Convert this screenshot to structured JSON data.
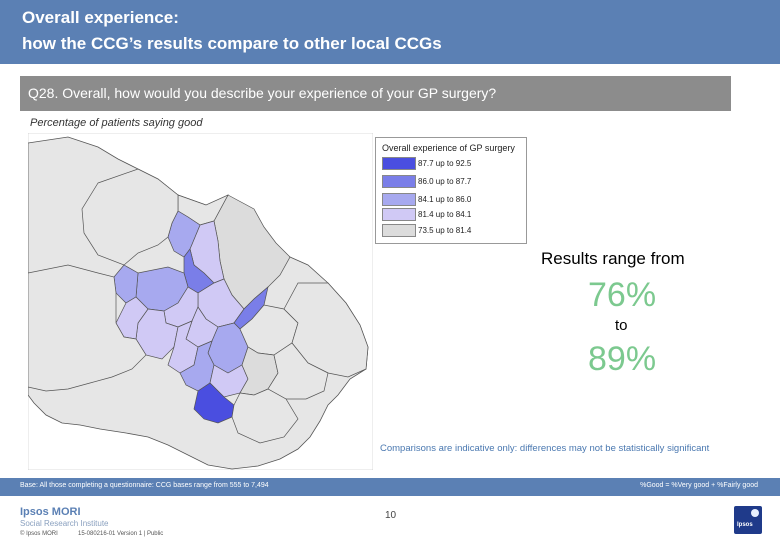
{
  "header": {
    "title_line1": "Overall experience:",
    "title_line2": "how the CCG’s results compare to other local CCGs"
  },
  "question": "Q28. Overall, how would you describe your experience of your GP surgery?",
  "subtitle": "Percentage of patients saying good",
  "legend": {
    "title": "Overall experience of GP surgery",
    "items": [
      {
        "label": "87.7 up to 92.5",
        "color": "#4a4ee0"
      },
      {
        "label": "86.0 up to 87.7",
        "color": "#7a7ee8"
      },
      {
        "label": "84.1 up to 86.0",
        "color": "#a7a9ef"
      },
      {
        "label": "81.4 up to 84.1",
        "color": "#d0c9f5"
      },
      {
        "label": "73.5 up to 81.4",
        "color": "#dcdcdc"
      }
    ]
  },
  "results": {
    "range_label": "Results range from",
    "low": "76%",
    "to": "to",
    "high": "89%",
    "accent_color": "#7cc98f"
  },
  "caveat": "Comparisons are indicative only: differences may not be statistically significant",
  "footer": {
    "base": "Base: All those completing a questionnaire: CCG bases range from 555 to 7,494",
    "note": "%Good = %Very good + %Fairly good",
    "logo_main": "Ipsos MORI",
    "logo_sub": "Social Research Institute",
    "copyright": "© Ipsos MORI",
    "version": "15-080216-01 Version 1 | Public",
    "page_number": "10",
    "badge_text": "Ipsos"
  }
}
